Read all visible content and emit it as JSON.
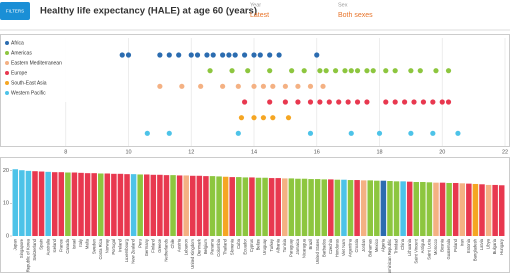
{
  "header": {
    "filters": "FILTERS",
    "title": "Healthy life expectancy (HALE) at age 60 (years)",
    "year_label": "Year",
    "year_value": "Latest",
    "sex_label": "Sex",
    "sex_value": "Both sexes"
  },
  "chart_data": [
    {
      "type": "strip",
      "legend": "top-left",
      "grid": true,
      "xlim": [
        6,
        22
      ],
      "xticks": [
        8,
        10,
        12,
        14,
        16,
        18,
        20,
        22
      ],
      "series": [
        {
          "name": "Africa",
          "color": "#2b6cb0",
          "values": [
            9.8,
            10,
            11,
            11.3,
            11.6,
            12,
            12.2,
            12.5,
            12.7,
            13,
            13.2,
            13.4,
            13.7,
            14,
            14.2,
            14.5,
            14.8,
            16
          ]
        },
        {
          "name": "Americas",
          "color": "#8dc63f",
          "values": [
            12.6,
            13.3,
            13.8,
            14.5,
            15.2,
            15.6,
            16.1,
            16.3,
            16.6,
            16.9,
            17.1,
            17.3,
            17.6,
            17.8,
            18.2,
            18.5,
            19,
            19.3,
            19.8,
            20.2
          ]
        },
        {
          "name": "Eastern Mediterranean",
          "color": "#f4b183",
          "values": [
            11,
            11.7,
            12.3,
            13,
            13.5,
            14,
            14.3,
            14.6,
            15,
            15.4,
            15.8,
            16.2
          ]
        },
        {
          "name": "Europe",
          "color": "#e8384f",
          "values": [
            13.7,
            14.5,
            15,
            15.4,
            15.8,
            16.1,
            16.4,
            16.7,
            17,
            17.3,
            17.6,
            18.2,
            18.5,
            18.8,
            19.1,
            19.4,
            19.7,
            20,
            20.2
          ]
        },
        {
          "name": "South-East Asia",
          "color": "#f5a623",
          "values": [
            13.6,
            14,
            14.3,
            14.6,
            15.1
          ]
        },
        {
          "name": "Western Pacific",
          "color": "#4dc3e8",
          "values": [
            10.6,
            11.3,
            13.5,
            15.8,
            17.1,
            18,
            19,
            19.7,
            20.5
          ]
        }
      ]
    },
    {
      "type": "bar",
      "ylim": [
        0,
        22
      ],
      "yticks": [
        0,
        10,
        20
      ],
      "categories": [
        "Japan",
        "Singapore",
        "Republic of Korea",
        "Switzerland",
        "Spain",
        "Australia",
        "Iceland",
        "France",
        "Canada",
        "Israel",
        "Italy",
        "Malta",
        "Sweden",
        "Costa Rica",
        "Norway",
        "Portugal",
        "Ireland",
        "Luxembourg",
        "New Zealand",
        "Peru",
        "Germany",
        "Finland",
        "Greece",
        "Netherlands",
        "Chile",
        "Austria",
        "Lebanon",
        "United Kingdom",
        "Denmark",
        "Belgium",
        "Panama",
        "Colombia",
        "Thailand",
        "Slovenia",
        "Cuba",
        "Ecuador",
        "Cyprus",
        "Belize",
        "Uruguay",
        "Turkey",
        "Albania",
        "Tunisia",
        "Paraguay",
        "Jamaica",
        "Nicaragua",
        "Brazil",
        "United States",
        "Barbados",
        "Czechia",
        "Honduras",
        "Viet Nam",
        "Argentina",
        "Croatia",
        "Jordan",
        "Bahamas",
        "Mexico",
        "Algeria",
        "Dominican Republic",
        "Trinidad",
        "China",
        "Lithuania",
        "Saint Vincent",
        "Antigua",
        "Saint Lucia",
        "Morocco",
        "Bosnia",
        "Guatemala",
        "Poland",
        "Iran",
        "Estonia",
        "Bangladesh",
        "Latvia",
        "Libya",
        "Bulgaria",
        "Hungary"
      ],
      "values": [
        20.4,
        20.1,
        19.9,
        19.8,
        19.7,
        19.6,
        19.5,
        19.5,
        19.4,
        19.4,
        19.3,
        19.2,
        19.2,
        19.1,
        19.1,
        19.0,
        19.0,
        18.9,
        18.9,
        18.8,
        18.8,
        18.7,
        18.7,
        18.6,
        18.6,
        18.5,
        18.5,
        18.4,
        18.4,
        18.3,
        18.3,
        18.2,
        18.1,
        18.0,
        18.0,
        17.9,
        17.9,
        17.8,
        17.8,
        17.7,
        17.7,
        17.6,
        17.6,
        17.5,
        17.5,
        17.4,
        17.4,
        17.3,
        17.3,
        17.2,
        17.2,
        17.1,
        17.1,
        17.0,
        17.0,
        16.9,
        16.9,
        16.8,
        16.7,
        16.7,
        16.6,
        16.5,
        16.5,
        16.4,
        16.3,
        16.3,
        16.2,
        16.2,
        16.1,
        16.0,
        15.9,
        15.8,
        15.6,
        15.6,
        15.5
      ],
      "colors": [
        "#4dc3e8",
        "#4dc3e8",
        "#4dc3e8",
        "#e8384f",
        "#e8384f",
        "#4dc3e8",
        "#e8384f",
        "#e8384f",
        "#8dc63f",
        "#e8384f",
        "#e8384f",
        "#e8384f",
        "#e8384f",
        "#8dc63f",
        "#e8384f",
        "#e8384f",
        "#e8384f",
        "#e8384f",
        "#4dc3e8",
        "#8dc63f",
        "#e8384f",
        "#e8384f",
        "#e8384f",
        "#e8384f",
        "#8dc63f",
        "#e8384f",
        "#f4b183",
        "#e8384f",
        "#e8384f",
        "#e8384f",
        "#8dc63f",
        "#8dc63f",
        "#f5a623",
        "#e8384f",
        "#8dc63f",
        "#8dc63f",
        "#e8384f",
        "#8dc63f",
        "#8dc63f",
        "#e8384f",
        "#e8384f",
        "#f4b183",
        "#8dc63f",
        "#8dc63f",
        "#8dc63f",
        "#8dc63f",
        "#8dc63f",
        "#8dc63f",
        "#e8384f",
        "#8dc63f",
        "#4dc3e8",
        "#8dc63f",
        "#e8384f",
        "#f4b183",
        "#8dc63f",
        "#8dc63f",
        "#2b6cb0",
        "#8dc63f",
        "#8dc63f",
        "#4dc3e8",
        "#e8384f",
        "#8dc63f",
        "#8dc63f",
        "#8dc63f",
        "#f4b183",
        "#e8384f",
        "#8dc63f",
        "#e8384f",
        "#f4b183",
        "#e8384f",
        "#f5a623",
        "#e8384f",
        "#f4b183",
        "#e8384f",
        "#e8384f"
      ]
    }
  ]
}
